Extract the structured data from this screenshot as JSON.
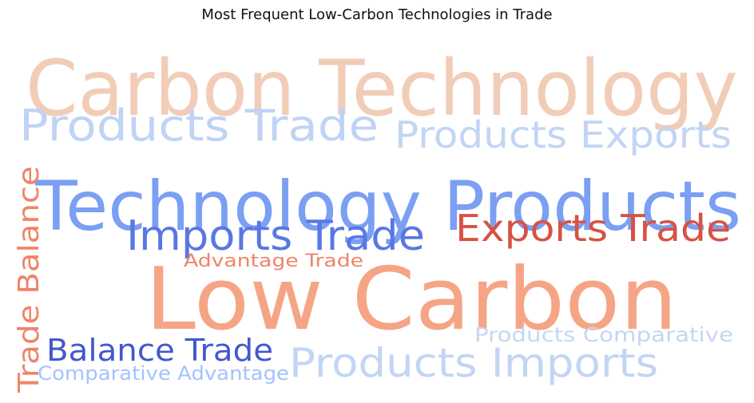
{
  "chart_data": {
    "type": "wordcloud",
    "title": "Most Frequent Low-Carbon Technologies in Trade",
    "words": [
      {
        "text": "Carbon Technology",
        "weight": 100,
        "color": "#f1cdb8"
      },
      {
        "text": "Technology Products",
        "weight": 92,
        "color": "#7b9ff2"
      },
      {
        "text": "Low Carbon",
        "weight": 88,
        "color": "#f5a585"
      },
      {
        "text": "Products Trade",
        "weight": 58,
        "color": "#bfd3f6"
      },
      {
        "text": "Products Exports",
        "weight": 52,
        "color": "#c2d5f4"
      },
      {
        "text": "Imports Trade",
        "weight": 55,
        "color": "#5977e3"
      },
      {
        "text": "Exports Trade",
        "weight": 53,
        "color": "#d65244"
      },
      {
        "text": "Trade Balance",
        "weight": 46,
        "color": "#ee8468"
      },
      {
        "text": "Advantage Trade",
        "weight": 32,
        "color": "#ee8468"
      },
      {
        "text": "Products Imports",
        "weight": 56,
        "color": "#c2d5f4"
      },
      {
        "text": "Balance Trade",
        "weight": 42,
        "color": "#4358cb"
      },
      {
        "text": "Products Comparative",
        "weight": 33,
        "color": "#c6d6f1"
      },
      {
        "text": "Comparative Advantage",
        "weight": 30,
        "color": "#a4c2fe"
      }
    ]
  }
}
